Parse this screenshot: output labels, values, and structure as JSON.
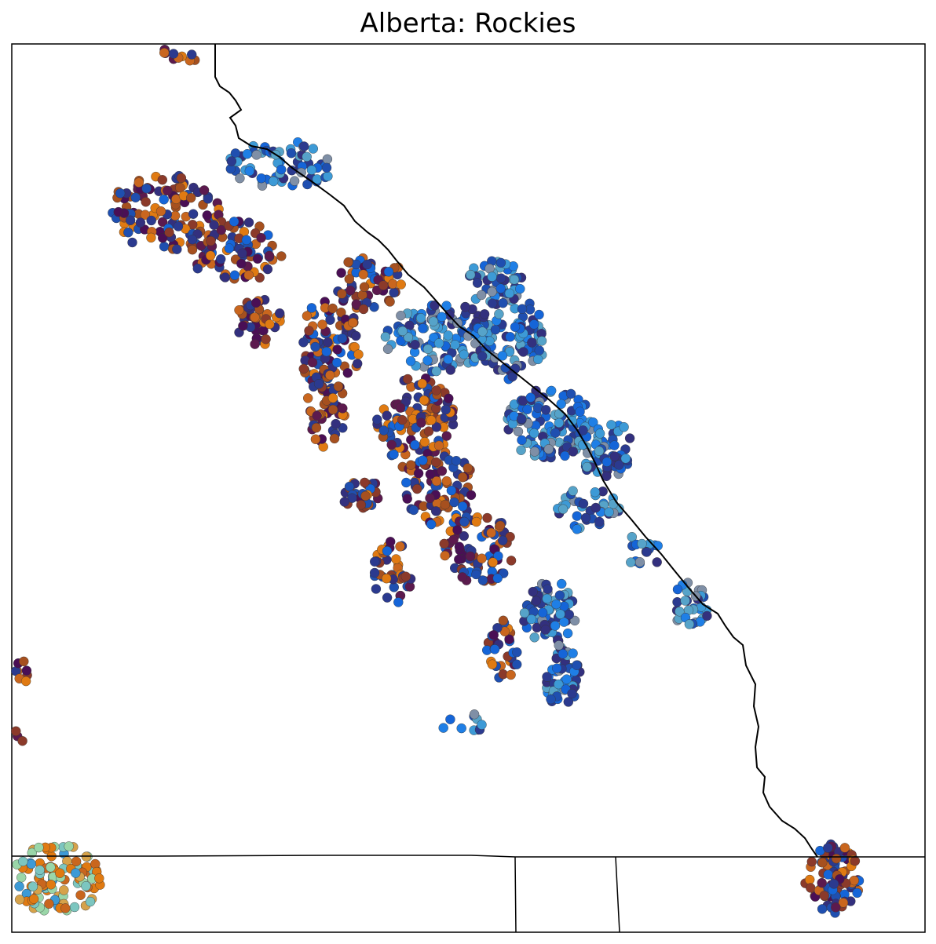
{
  "title": "Alberta: Rockies",
  "colors": {
    "border": "#000000",
    "palette": [
      "#4a0f55",
      "#5c1a4e",
      "#33307e",
      "#2b3a8f",
      "#1f4fb0",
      "#1565d8",
      "#1f7fe6",
      "#3d9ad6",
      "#56a3c9",
      "#7f8fa6",
      "#8b3a2a",
      "#a6501f",
      "#c9661e",
      "#e07a12",
      "#d6a24a",
      "#9ad6a8",
      "#7cc6c0"
    ]
  }
}
